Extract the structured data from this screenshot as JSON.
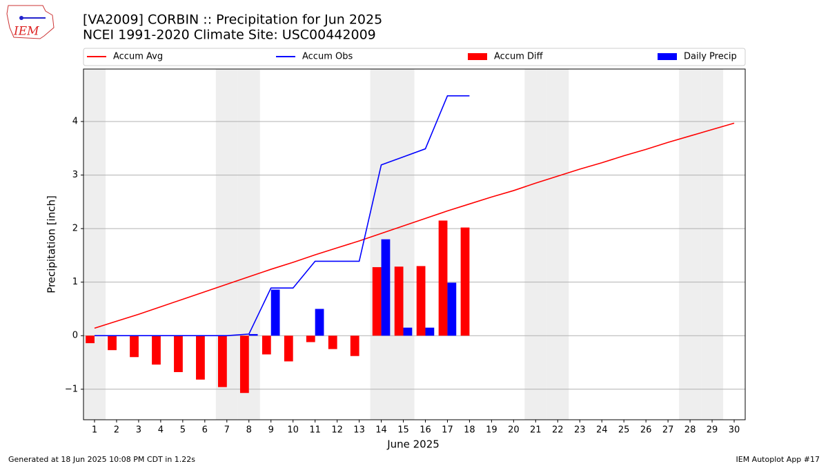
{
  "header": {
    "logo_text": "IEM"
  },
  "chart_data": {
    "type": "bar_line",
    "title": "[VA2009] CORBIN :: Precipitation for Jun 2025",
    "subtitle": "NCEI 1991-2020 Climate Site: USC00442009",
    "xlabel": "June 2025",
    "ylabel": "Precipitation [inch]",
    "x": [
      1,
      2,
      3,
      4,
      5,
      6,
      7,
      8,
      9,
      10,
      11,
      12,
      13,
      14,
      15,
      16,
      17,
      18,
      19,
      20,
      21,
      22,
      23,
      24,
      25,
      26,
      27,
      28,
      29,
      30
    ],
    "xlim": [
      0.5,
      30.5
    ],
    "xticks": [
      1,
      2,
      3,
      4,
      5,
      6,
      7,
      8,
      9,
      10,
      11,
      12,
      13,
      14,
      15,
      16,
      17,
      18,
      19,
      20,
      21,
      22,
      23,
      24,
      25,
      26,
      27,
      28,
      29,
      30
    ],
    "ylim": [
      -1.57,
      4.98
    ],
    "yticks": [
      {
        "value": -1,
        "label": "−1"
      },
      0,
      1,
      2,
      3,
      4
    ],
    "grid": true,
    "weekend_days": [
      1,
      7,
      8,
      14,
      15,
      21,
      22,
      28,
      29
    ],
    "series": [
      {
        "name": "Accum Avg",
        "kind": "line",
        "color": "#ff0000",
        "values": [
          0.14,
          0.27,
          0.4,
          0.54,
          0.68,
          0.82,
          0.96,
          1.1,
          1.24,
          1.37,
          1.51,
          1.64,
          1.77,
          1.91,
          2.05,
          2.19,
          2.33,
          2.46,
          2.59,
          2.71,
          2.85,
          2.98,
          3.11,
          3.23,
          3.36,
          3.48,
          3.61,
          3.73,
          3.85,
          3.97
        ]
      },
      {
        "name": "Accum Obs",
        "kind": "line",
        "color": "#0000ff",
        "values": [
          0,
          0,
          0,
          0,
          0,
          0,
          0,
          0.03,
          0.89,
          0.89,
          1.39,
          1.39,
          1.39,
          3.19,
          3.34,
          3.49,
          4.48,
          4.48,
          null,
          null,
          null,
          null,
          null,
          null,
          null,
          null,
          null,
          null,
          null,
          null
        ]
      },
      {
        "name": "Accum Diff",
        "kind": "bar",
        "color": "#ff0000",
        "values": [
          -0.14,
          -0.27,
          -0.4,
          -0.54,
          -0.68,
          -0.82,
          -0.96,
          -1.07,
          -0.35,
          -0.48,
          -0.12,
          -0.25,
          -0.38,
          1.28,
          1.29,
          1.3,
          2.15,
          2.02,
          null,
          null,
          null,
          null,
          null,
          null,
          null,
          null,
          null,
          null,
          null,
          null
        ]
      },
      {
        "name": "Daily Precip",
        "kind": "bar",
        "color": "#0000ff",
        "values": [
          0,
          0,
          0,
          0,
          0,
          0,
          0,
          0.03,
          0.86,
          0,
          0.5,
          0,
          0,
          1.8,
          0.15,
          0.15,
          0.99,
          0,
          null,
          null,
          null,
          null,
          null,
          null,
          null,
          null,
          null,
          null,
          null,
          null
        ]
      }
    ],
    "footer_left": "Generated at 18 Jun 2025 10:08 PM CDT in 1.22s",
    "footer_right": "IEM Autoplot App #17"
  }
}
